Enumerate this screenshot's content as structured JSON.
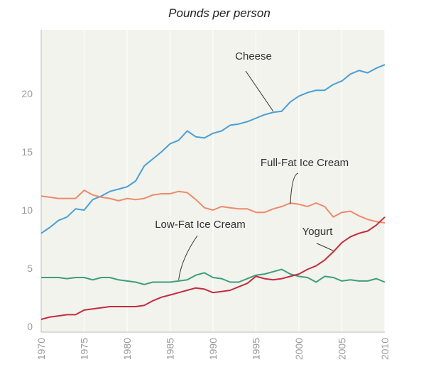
{
  "chart_data": {
    "type": "line",
    "title": "Pounds per person",
    "xlabel": "",
    "ylabel": "",
    "xlim": [
      1970,
      2010
    ],
    "ylim": [
      -0.5,
      25.5
    ],
    "x_ticks": [
      1970,
      1975,
      1980,
      1985,
      1990,
      1995,
      2000,
      2005,
      2010
    ],
    "y_ticks": [
      0,
      5,
      10,
      15,
      20
    ],
    "grid": "vertical",
    "legend": "direct labels",
    "x": [
      1970,
      1971,
      1972,
      1973,
      1974,
      1975,
      1976,
      1977,
      1978,
      1979,
      1980,
      1981,
      1982,
      1983,
      1984,
      1985,
      1986,
      1987,
      1988,
      1989,
      1990,
      1991,
      1992,
      1993,
      1994,
      1995,
      1996,
      1997,
      1998,
      1999,
      2000,
      2001,
      2002,
      2003,
      2004,
      2005,
      2006,
      2007,
      2008,
      2009,
      2010
    ],
    "series": [
      {
        "name": "Cheese",
        "color": "#4a9fd8",
        "label_anchor": [
          1997,
          18.5
        ],
        "values": [
          8.0,
          8.5,
          9.1,
          9.4,
          10.1,
          10.0,
          10.9,
          11.2,
          11.6,
          11.8,
          12.0,
          12.5,
          13.8,
          14.4,
          15.0,
          15.7,
          16.0,
          16.8,
          16.3,
          16.2,
          16.6,
          16.8,
          17.3,
          17.4,
          17.6,
          17.9,
          18.2,
          18.4,
          18.5,
          19.3,
          19.8,
          20.1,
          20.3,
          20.3,
          20.8,
          21.1,
          21.7,
          22.0,
          21.8,
          22.2,
          22.5
        ]
      },
      {
        "name": "Full-Fat Ice Cream",
        "color": "#ee8a6b",
        "label_anchor": [
          1999,
          10.5
        ],
        "values": [
          11.2,
          11.1,
          11.0,
          11.0,
          11.0,
          11.7,
          11.3,
          11.1,
          11.0,
          10.8,
          11.0,
          10.9,
          11.0,
          11.3,
          11.4,
          11.4,
          11.6,
          11.5,
          10.9,
          10.2,
          10.0,
          10.3,
          10.2,
          10.1,
          10.1,
          9.8,
          9.8,
          10.1,
          10.3,
          10.6,
          10.5,
          10.3,
          10.6,
          10.3,
          9.4,
          9.8,
          9.9,
          9.5,
          9.2,
          9.0,
          8.9
        ]
      },
      {
        "name": "Low-Fat Ice Cream",
        "color": "#3e9e7c",
        "label_anchor": [
          1986,
          4.0
        ],
        "values": [
          4.2,
          4.2,
          4.2,
          4.1,
          4.2,
          4.2,
          4.0,
          4.2,
          4.2,
          4.0,
          3.9,
          3.8,
          3.6,
          3.8,
          3.8,
          3.8,
          3.9,
          4.0,
          4.4,
          4.6,
          4.2,
          4.1,
          3.8,
          3.8,
          4.1,
          4.4,
          4.5,
          4.7,
          4.9,
          4.5,
          4.3,
          4.2,
          3.8,
          4.3,
          4.2,
          3.9,
          4.0,
          3.9,
          3.9,
          4.1,
          3.8
        ]
      },
      {
        "name": "Yogurt",
        "color": "#c42b3e",
        "label_anchor": [
          2004,
          6.5
        ],
        "values": [
          0.6,
          0.8,
          0.9,
          1.0,
          1.0,
          1.4,
          1.5,
          1.6,
          1.7,
          1.7,
          1.7,
          1.7,
          1.8,
          2.2,
          2.5,
          2.7,
          2.9,
          3.1,
          3.3,
          3.2,
          2.9,
          3.0,
          3.1,
          3.4,
          3.7,
          4.3,
          4.1,
          4.0,
          4.1,
          4.3,
          4.5,
          4.9,
          5.2,
          5.7,
          6.4,
          7.2,
          7.7,
          8.0,
          8.2,
          8.7,
          9.4
        ]
      }
    ]
  }
}
